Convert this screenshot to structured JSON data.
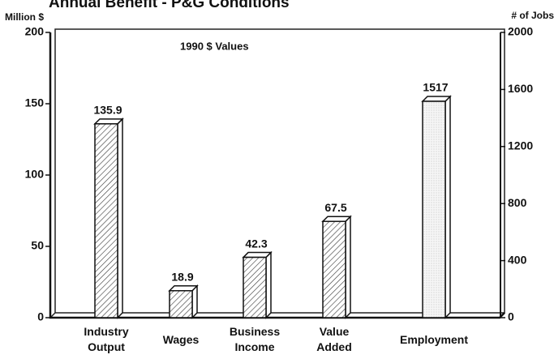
{
  "chart_data": {
    "type": "bar",
    "title": "Annual Benefit - P&G Conditions",
    "y_label": "Million $",
    "y2_label": "# of Jobs",
    "annotation": "1990 $ Values",
    "categories": [
      "Industry Output",
      "Wages",
      "Business Income",
      "Value Added",
      "Employment"
    ],
    "series": [
      {
        "name": "Million $",
        "values": [
          135.9,
          18.9,
          42.3,
          67.5,
          null
        ]
      },
      {
        "name": "# of Jobs",
        "axis": "y2",
        "values": [
          null,
          null,
          null,
          null,
          1517
        ]
      }
    ],
    "ylim": [
      0,
      200
    ],
    "yticks": [
      0,
      50,
      100,
      150,
      200
    ],
    "y2lim": [
      0,
      2000
    ],
    "y2ticks": [
      0,
      400,
      800,
      1200,
      1600,
      2000
    ]
  }
}
